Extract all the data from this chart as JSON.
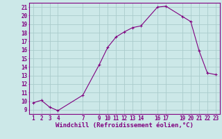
{
  "x": [
    1,
    2,
    3,
    4,
    7,
    9,
    10,
    11,
    12,
    13,
    14,
    16,
    17,
    19,
    20,
    21,
    22,
    23
  ],
  "y": [
    9.8,
    10.1,
    9.3,
    8.9,
    10.7,
    14.3,
    16.3,
    17.5,
    18.1,
    18.6,
    18.8,
    21.0,
    21.1,
    19.9,
    19.3,
    15.9,
    13.3,
    13.1
  ],
  "line_color": "#800080",
  "marker": "+",
  "bg_color": "#cce8e8",
  "grid_color": "#aacccc",
  "xlabel": "Windchill (Refroidissement éolien,°C)",
  "xlabel_color": "#800080",
  "tick_color": "#800080",
  "spine_color": "#800080",
  "xlim": [
    0.5,
    23.5
  ],
  "ylim": [
    8.5,
    21.5
  ],
  "xticks": [
    1,
    2,
    3,
    4,
    7,
    9,
    10,
    11,
    12,
    13,
    14,
    16,
    17,
    19,
    20,
    21,
    22,
    23
  ],
  "yticks": [
    9,
    10,
    11,
    12,
    13,
    14,
    15,
    16,
    17,
    18,
    19,
    20,
    21
  ],
  "font_size": 5.5,
  "xlabel_fontsize": 6.5
}
